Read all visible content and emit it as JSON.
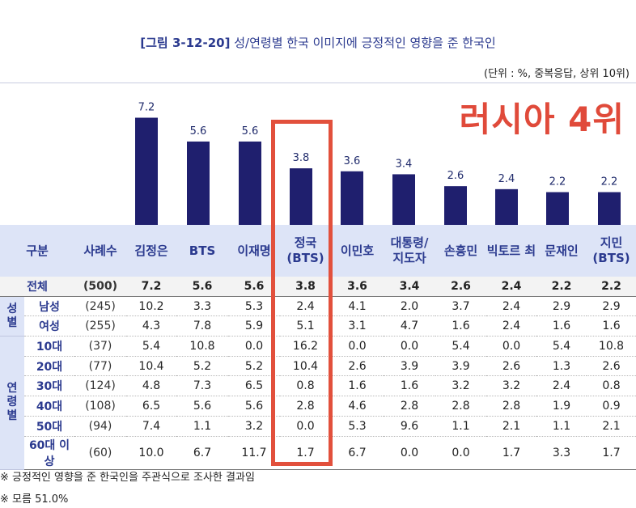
{
  "header": {
    "figure_label": "[그림 3-12-20]",
    "title": "성/연령별 한국 이미지에 긍정적인 영향을 준 한국인",
    "unit_note": "(단위 : %, 중복응답, 상위 10위)"
  },
  "overlay_text": "러시아 4위",
  "chart_data": {
    "type": "bar",
    "categories": [
      "김정은",
      "BTS",
      "이재명",
      "정국 (BTS)",
      "이민호",
      "대통령/ 지도자",
      "손흥민",
      "빅토르 최",
      "문재인",
      "지민 (BTS)"
    ],
    "values": [
      7.2,
      5.6,
      5.6,
      3.8,
      3.6,
      3.4,
      2.6,
      2.4,
      2.2,
      2.2
    ],
    "value_labels": [
      "7.2",
      "5.6",
      "5.6",
      "3.8",
      "3.6",
      "3.4",
      "2.6",
      "2.4",
      "2.2",
      "2.2"
    ],
    "ylim": [
      0,
      8
    ],
    "bar_color": "#1f1f6e",
    "highlight_index": 3,
    "highlight_color": "#e2503c"
  },
  "table": {
    "headers": [
      "구분",
      "사례수",
      "김정은",
      "BTS",
      "이재명",
      "정국\n(BTS)",
      "이민호",
      "대통령/\n지도자",
      "손흥민",
      "빅토르 최",
      "문재인",
      "지민\n(BTS)"
    ],
    "total": {
      "label": "전체",
      "n": "(500)",
      "values": [
        "7.2",
        "5.6",
        "5.6",
        "3.8",
        "3.6",
        "3.4",
        "2.6",
        "2.4",
        "2.2",
        "2.2"
      ]
    },
    "groups": [
      {
        "label": "성\n별",
        "rows": [
          {
            "label": "남성",
            "n": "(245)",
            "values": [
              "10.2",
              "3.3",
              "5.3",
              "2.4",
              "4.1",
              "2.0",
              "3.7",
              "2.4",
              "2.9",
              "2.9"
            ]
          },
          {
            "label": "여성",
            "n": "(255)",
            "values": [
              "4.3",
              "7.8",
              "5.9",
              "5.1",
              "3.1",
              "4.7",
              "1.6",
              "2.4",
              "1.6",
              "1.6"
            ]
          }
        ]
      },
      {
        "label": "연\n령\n별",
        "rows": [
          {
            "label": "10대",
            "n": "(37)",
            "values": [
              "5.4",
              "10.8",
              "0.0",
              "16.2",
              "0.0",
              "0.0",
              "5.4",
              "0.0",
              "5.4",
              "10.8"
            ]
          },
          {
            "label": "20대",
            "n": "(77)",
            "values": [
              "10.4",
              "5.2",
              "5.2",
              "10.4",
              "2.6",
              "3.9",
              "3.9",
              "2.6",
              "1.3",
              "2.6"
            ]
          },
          {
            "label": "30대",
            "n": "(124)",
            "values": [
              "4.8",
              "7.3",
              "6.5",
              "0.8",
              "1.6",
              "1.6",
              "3.2",
              "3.2",
              "2.4",
              "0.8"
            ]
          },
          {
            "label": "40대",
            "n": "(108)",
            "values": [
              "6.5",
              "5.6",
              "5.6",
              "2.8",
              "4.6",
              "2.8",
              "2.8",
              "2.8",
              "1.9",
              "0.9"
            ]
          },
          {
            "label": "50대",
            "n": "(94)",
            "values": [
              "7.4",
              "1.1",
              "3.2",
              "0.0",
              "5.3",
              "9.6",
              "1.1",
              "2.1",
              "1.1",
              "2.1"
            ]
          },
          {
            "label": "60대 이상",
            "n": "(60)",
            "values": [
              "10.0",
              "6.7",
              "11.7",
              "1.7",
              "6.7",
              "0.0",
              "0.0",
              "1.7",
              "3.3",
              "1.7"
            ]
          }
        ]
      }
    ]
  },
  "notes": [
    "※ 긍정적인 영향을 준 한국인을 주관식으로 조사한 결과임",
    "※ 모름 51.0%"
  ]
}
